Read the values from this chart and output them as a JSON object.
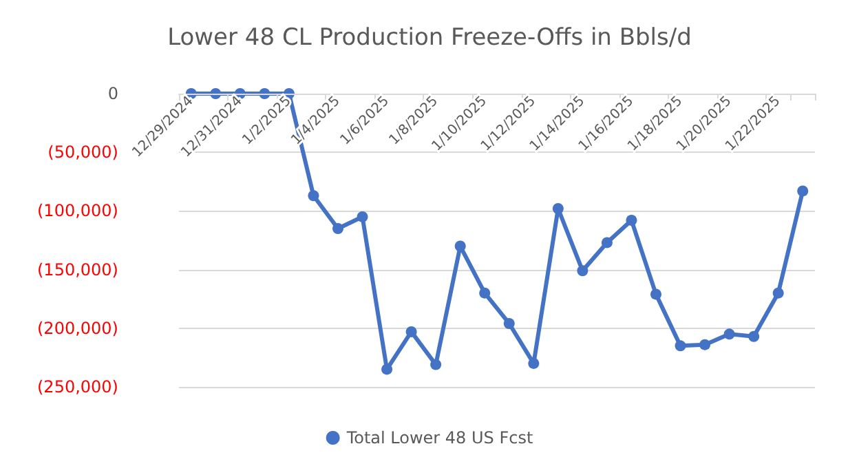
{
  "chart_data": {
    "type": "line",
    "title": "Lower 48 CL Production Freeze-Offs in Bbls/d",
    "categories": [
      "12/29/2024",
      null,
      "12/31/2024",
      null,
      "1/2/2025",
      null,
      "1/4/2025",
      null,
      "1/6/2025",
      null,
      "1/8/2025",
      null,
      "1/10/2025",
      null,
      "1/12/2025",
      null,
      "1/14/2025",
      null,
      "1/16/2025",
      null,
      "1/18/2025",
      null,
      "1/20/2025",
      null,
      "1/22/2025",
      null
    ],
    "series": [
      {
        "name": "Total Lower 48 US Fcst",
        "color": "#4472c4",
        "values": [
          0,
          0,
          0,
          0,
          0,
          -87000,
          -115000,
          -105000,
          -235000,
          -203000,
          -231000,
          -130000,
          -170000,
          -196000,
          -230000,
          -98000,
          -151000,
          -127000,
          -108000,
          -171000,
          -215000,
          -214000,
          -205000,
          -207000,
          -170000,
          -83000
        ]
      }
    ],
    "ylim": [
      -250000,
      0
    ],
    "yticks": [
      0,
      {
        "value": -50000,
        "label": "(50,000)"
      },
      {
        "value": -100000,
        "label": "(100,000)"
      },
      {
        "value": -150000,
        "label": "(150,000)"
      },
      {
        "value": -200000,
        "label": "(200,000)"
      },
      {
        "value": -250000,
        "label": "(250,000)"
      }
    ],
    "grid": "y",
    "legend": "bottom",
    "marker": "circle",
    "line_style": "solid"
  }
}
